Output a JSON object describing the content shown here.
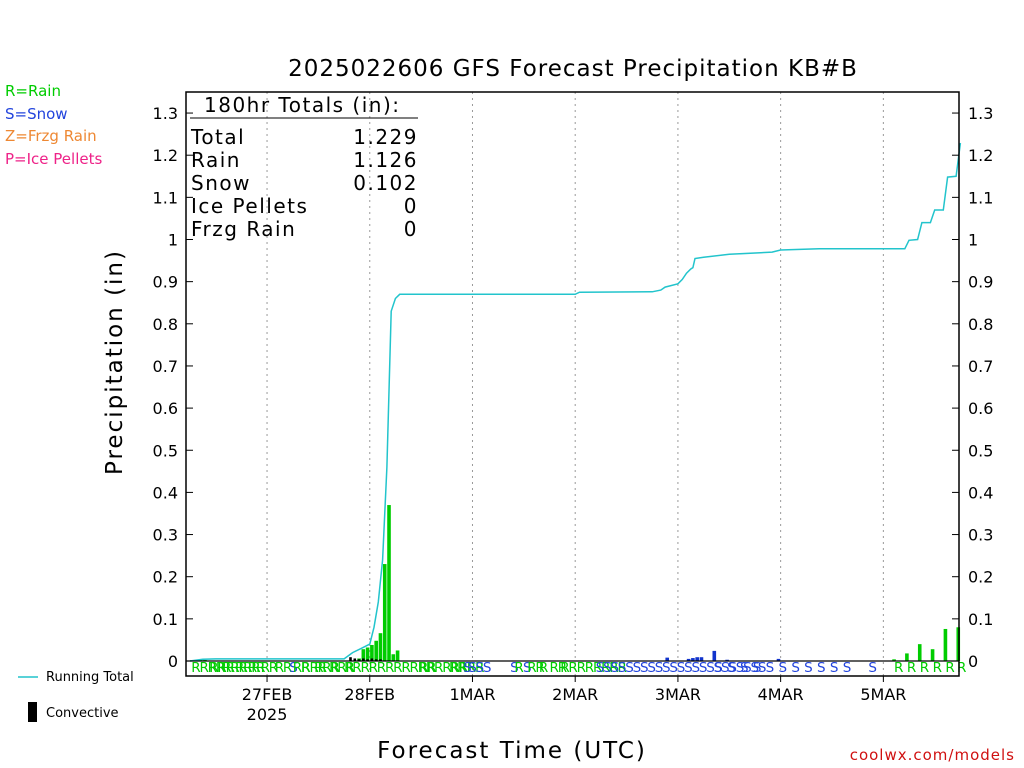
{
  "title": "2025022606 GFS Forecast Precipitation KB#B",
  "precip_key": [
    {
      "label": "R=Rain",
      "color": "#00cc00"
    },
    {
      "label": "S=Snow",
      "color": "#2244dd"
    },
    {
      "label": "Z=Frzg Rain",
      "color": "#ee8833"
    },
    {
      "label": "P=Ice Pellets",
      "color": "#ee2288"
    }
  ],
  "totals": {
    "heading": "180hr Totals (in):",
    "rows": [
      {
        "label": "Total",
        "value": "1.229"
      },
      {
        "label": "Rain",
        "value": "1.126"
      },
      {
        "label": "Snow",
        "value": "0.102"
      },
      {
        "label": "Ice Pellets",
        "value": "0"
      },
      {
        "label": "Frzg Rain",
        "value": "0"
      }
    ]
  },
  "legend": {
    "running_total": "Running Total",
    "convective": "Convective"
  },
  "credit": "coolwx.com/models",
  "colors": {
    "running_total": "#22c4cc",
    "rain": "#00cc00",
    "snow": "#1133cc",
    "convective": "#000000"
  },
  "chart_data": {
    "type": "bar",
    "xlabel": "Forecast Time (UTC)",
    "ylabel": "Precipitation (in)",
    "ylim": [
      0,
      1.35
    ],
    "yticks": [
      0,
      0.1,
      0.2,
      0.3,
      0.4,
      0.5,
      0.6,
      0.7,
      0.8,
      0.9,
      1,
      1.1,
      1.2,
      1.3
    ],
    "x_range_hours": [
      0,
      180
    ],
    "x_ticks": [
      {
        "hour": 18,
        "label": "27FEB",
        "sublabel": "2025"
      },
      {
        "hour": 42,
        "label": "28FEB"
      },
      {
        "hour": 66,
        "label": "1MAR"
      },
      {
        "hour": 90,
        "label": "2MAR"
      },
      {
        "hour": 114,
        "label": "3MAR"
      },
      {
        "hour": 138,
        "label": "4MAR"
      },
      {
        "hour": 162,
        "label": "5MAR"
      }
    ],
    "grid": "vertical-dotted",
    "series": [
      {
        "name": "Running Total",
        "type": "line",
        "points": [
          [
            0,
            0
          ],
          [
            3,
            0.004
          ],
          [
            6,
            0.005
          ],
          [
            36,
            0.005
          ],
          [
            38,
            0.02
          ],
          [
            40,
            0.03
          ],
          [
            42,
            0.04
          ],
          [
            43,
            0.08
          ],
          [
            44,
            0.14
          ],
          [
            45,
            0.24
          ],
          [
            46,
            0.46
          ],
          [
            47,
            0.83
          ],
          [
            48,
            0.86
          ],
          [
            49,
            0.87
          ],
          [
            90,
            0.87
          ],
          [
            91,
            0.875
          ],
          [
            108,
            0.876
          ],
          [
            110,
            0.88
          ],
          [
            111,
            0.887
          ],
          [
            114,
            0.895
          ],
          [
            115,
            0.905
          ],
          [
            116,
            0.92
          ],
          [
            117,
            0.93
          ],
          [
            117.5,
            0.933
          ],
          [
            118,
            0.955
          ],
          [
            120,
            0.958
          ],
          [
            126,
            0.965
          ],
          [
            136,
            0.97
          ],
          [
            138,
            0.975
          ],
          [
            147,
            0.978
          ],
          [
            167,
            0.978
          ],
          [
            168,
            0.998
          ],
          [
            170,
            1.0
          ],
          [
            171,
            1.04
          ],
          [
            173,
            1.04
          ],
          [
            174,
            1.07
          ],
          [
            176,
            1.07
          ],
          [
            177,
            1.148
          ],
          [
            179,
            1.15
          ],
          [
            180,
            1.229
          ]
        ]
      },
      {
        "name": "Rain",
        "type": "bar",
        "points": [
          [
            0.5,
            0.002
          ],
          [
            1.5,
            0.002
          ],
          [
            2.5,
            0.002
          ],
          [
            3.5,
            0.002
          ],
          [
            39.5,
            0.006
          ],
          [
            40.5,
            0.028
          ],
          [
            41.5,
            0.032
          ],
          [
            42.5,
            0.038
          ],
          [
            43.5,
            0.048
          ],
          [
            44.5,
            0.066
          ],
          [
            45.5,
            0.23
          ],
          [
            46.5,
            0.37
          ],
          [
            47.5,
            0.016
          ],
          [
            48.5,
            0.025
          ],
          [
            164.5,
            0.004
          ],
          [
            167.5,
            0.018
          ],
          [
            170.5,
            0.04
          ],
          [
            173.5,
            0.028
          ],
          [
            176.5,
            0.076
          ],
          [
            179.5,
            0.08
          ]
        ]
      },
      {
        "name": "Snow",
        "type": "bar",
        "points": [
          [
            111.5,
            0.008
          ],
          [
            116.5,
            0.005
          ],
          [
            117.5,
            0.007
          ],
          [
            118.5,
            0.009
          ],
          [
            119.5,
            0.009
          ],
          [
            122.5,
            0.024
          ],
          [
            125.5,
            0.003
          ],
          [
            137.5,
            0.005
          ]
        ]
      },
      {
        "name": "Convective",
        "type": "bar",
        "points": [
          [
            37.5,
            0.009
          ],
          [
            38.5,
            0.006
          ],
          [
            39.5,
            0.004
          ],
          [
            40.5,
            0.006
          ],
          [
            41.5,
            0.004
          ],
          [
            42.5,
            0.006
          ],
          [
            43.5,
            0.004
          ],
          [
            44.5,
            0.004
          ]
        ]
      }
    ],
    "ptype_labels": [
      {
        "hour": 0.3,
        "text": "RRRR",
        "kind": "R"
      },
      {
        "hour": 4.5,
        "text": "RRR",
        "kind": "R"
      },
      {
        "hour": 7.5,
        "text": "RRR",
        "kind": "R"
      },
      {
        "hour": 10.5,
        "text": "RRR",
        "kind": "R"
      },
      {
        "hour": 13.5,
        "text": "RR",
        "kind": "R"
      },
      {
        "hour": 16.5,
        "text": "RR",
        "kind": "R"
      },
      {
        "hour": 19.8,
        "text": "RR",
        "kind": "R"
      },
      {
        "hour": 23.2,
        "text": "S",
        "kind": "S"
      },
      {
        "hour": 24.0,
        "text": "RR",
        "kind": "R"
      },
      {
        "hour": 26.0,
        "text": "RRR",
        "kind": "R"
      },
      {
        "hour": 29.0,
        "text": "RRR",
        "kind": "R"
      },
      {
        "hour": 32.5,
        "text": "RRR",
        "kind": "R"
      },
      {
        "hour": 36.0,
        "text": "RRRRRRRRRRRRRRRRR",
        "kind": "R"
      },
      {
        "hour": 53.5,
        "text": "RR",
        "kind": "R"
      },
      {
        "hour": 60.5,
        "text": "RR",
        "kind": "R"
      },
      {
        "hour": 62.8,
        "text": "R",
        "kind": "R"
      },
      {
        "hour": 63.8,
        "text": "S",
        "kind": "S"
      },
      {
        "hour": 65.0,
        "text": "SSS",
        "kind": "S"
      },
      {
        "hour": 74.8,
        "text": "S",
        "kind": "S"
      },
      {
        "hour": 75.8,
        "text": "R",
        "kind": "R"
      },
      {
        "hour": 77.8,
        "text": "S",
        "kind": "S"
      },
      {
        "hour": 78.8,
        "text": "RR",
        "kind": "R"
      },
      {
        "hour": 81.5,
        "text": "R",
        "kind": "R"
      },
      {
        "hour": 84.0,
        "text": "RR",
        "kind": "R"
      },
      {
        "hour": 86.5,
        "text": "RRRRRRRR",
        "kind": "R"
      },
      {
        "hour": 94.8,
        "text": "SSSSSSSSSSSSSSSSSSSSSSS",
        "kind": "S"
      },
      {
        "hour": 122.5,
        "text": "S",
        "kind": "S"
      },
      {
        "hour": 125.5,
        "text": "S",
        "kind": "S"
      },
      {
        "hour": 128.5,
        "text": "S",
        "kind": "S"
      },
      {
        "hour": 131.5,
        "text": "S",
        "kind": "S"
      },
      {
        "hour": 134.5,
        "text": "S",
        "kind": "S"
      },
      {
        "hour": 137.5,
        "text": "S",
        "kind": "S"
      },
      {
        "hour": 140.5,
        "text": "S",
        "kind": "S"
      },
      {
        "hour": 143.5,
        "text": "S",
        "kind": "S"
      },
      {
        "hour": 146.5,
        "text": "S",
        "kind": "S"
      },
      {
        "hour": 149.5,
        "text": "S",
        "kind": "S"
      },
      {
        "hour": 152.5,
        "text": "S",
        "kind": "S"
      },
      {
        "hour": 158.5,
        "text": "S",
        "kind": "S"
      },
      {
        "hour": 164.5,
        "text": "R",
        "kind": "R"
      },
      {
        "hour": 167.5,
        "text": "R",
        "kind": "R"
      },
      {
        "hour": 170.5,
        "text": "R",
        "kind": "R"
      },
      {
        "hour": 173.5,
        "text": "R",
        "kind": "R"
      },
      {
        "hour": 176.5,
        "text": "R",
        "kind": "R"
      },
      {
        "hour": 179.2,
        "text": "R",
        "kind": "R"
      }
    ]
  }
}
